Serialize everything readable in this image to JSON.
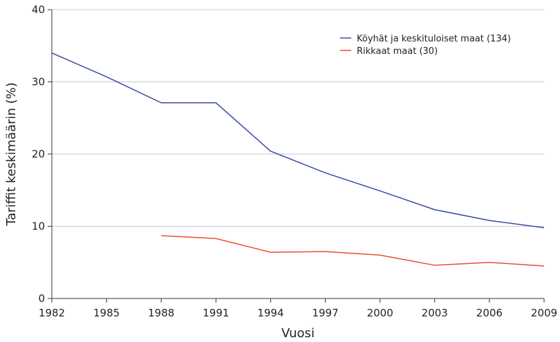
{
  "chart_data": {
    "type": "line",
    "title": "",
    "xlabel": "Vuosi",
    "ylabel": "Tariffit keskimäärin (%)",
    "xlim": [
      1982,
      2009
    ],
    "ylim": [
      0,
      40
    ],
    "x_ticks": [
      1982,
      1985,
      1988,
      1991,
      1994,
      1997,
      2000,
      2003,
      2006,
      2009
    ],
    "y_ticks": [
      0,
      10,
      20,
      30,
      40
    ],
    "grid": "horizontal",
    "legend_position": "top-right",
    "series": [
      {
        "name": "Köyhät ja keskituloiset maat (134)",
        "color": "#3a49a8",
        "x": [
          1982,
          1985,
          1988,
          1991,
          1994,
          1997,
          2000,
          2003,
          2006,
          2009
        ],
        "y": [
          34.0,
          30.7,
          27.1,
          27.1,
          20.4,
          17.4,
          14.9,
          12.3,
          10.8,
          9.8
        ]
      },
      {
        "name": "Rikkaat maat (30)",
        "color": "#e8502a",
        "x": [
          1988,
          1991,
          1994,
          1997,
          2000,
          2003,
          2006,
          2009
        ],
        "y": [
          8.7,
          8.3,
          6.4,
          6.5,
          6.0,
          4.6,
          5.0,
          4.5
        ]
      }
    ]
  }
}
